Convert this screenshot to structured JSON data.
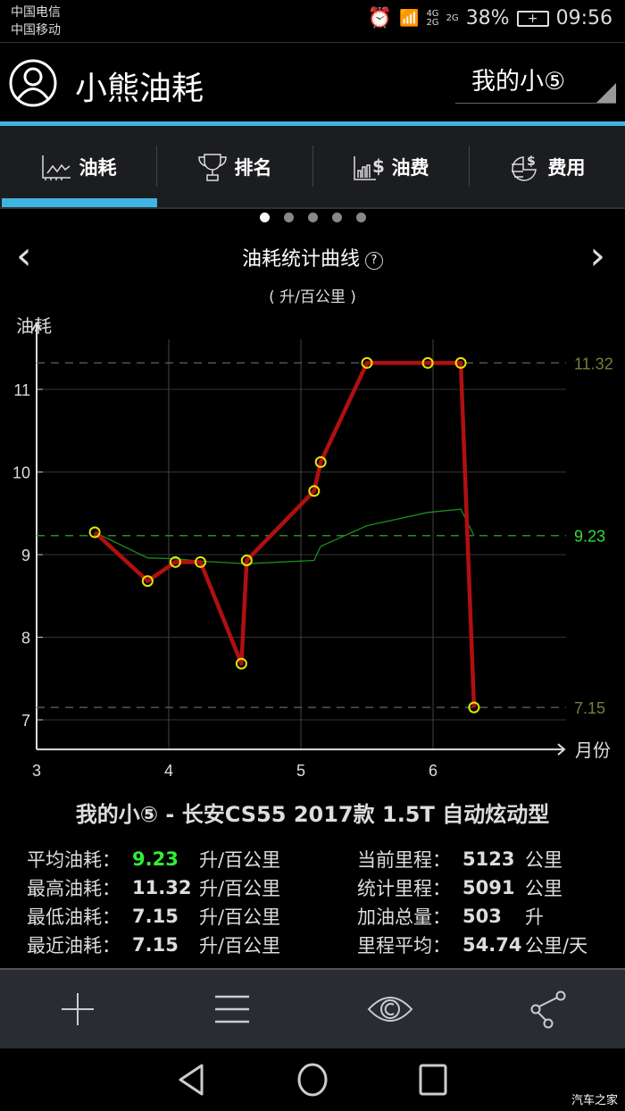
{
  "status_bar": {
    "carriers": [
      "中国电信",
      "中国移动"
    ],
    "net1": "4G",
    "net2": "2G",
    "net3": "2G",
    "battery": "38%",
    "time": "09:56"
  },
  "header": {
    "app_title": "小熊油耗",
    "car_selector": "我的小⑤"
  },
  "tabs": [
    {
      "label": "油耗",
      "icon": "line-chart-icon",
      "active": true
    },
    {
      "label": "排名",
      "icon": "trophy-icon"
    },
    {
      "label": "油费",
      "icon": "bar-dollar-icon"
    },
    {
      "label": "费用",
      "icon": "pie-dollar-icon"
    }
  ],
  "pager": {
    "count": 5,
    "active": 0
  },
  "chart_header": {
    "title": "油耗统计曲线",
    "help": "?",
    "unit": "( 升/百公里 )"
  },
  "chart_data": {
    "type": "line",
    "ylabel": "油耗",
    "xlabel": "月份",
    "xlim": [
      3,
      6.65
    ],
    "ylim": [
      6.75,
      11.5
    ],
    "xticks": [
      3,
      4,
      5,
      6
    ],
    "yticks": [
      7,
      8,
      9,
      10,
      11
    ],
    "grid": true,
    "series": [
      {
        "role": "fuel-consumption",
        "color": "#b01010",
        "marker_color": "#e6e600",
        "x": [
          3.44,
          3.84,
          4.05,
          4.24,
          4.55,
          4.59,
          5.1,
          5.15,
          5.5,
          5.96,
          6.21,
          6.31
        ],
        "y": [
          9.27,
          8.68,
          8.91,
          8.91,
          7.68,
          8.93,
          9.77,
          10.12,
          11.32,
          11.32,
          11.32,
          7.15
        ]
      },
      {
        "role": "running-average",
        "color": "#1f8a1f",
        "x": [
          3.44,
          3.84,
          4.05,
          4.24,
          4.59,
          5.1,
          5.15,
          5.5,
          5.96,
          6.21,
          6.31
        ],
        "y": [
          9.27,
          8.96,
          8.95,
          8.92,
          8.89,
          8.93,
          9.1,
          9.35,
          9.51,
          9.55,
          9.23
        ]
      }
    ],
    "reference_lines": [
      {
        "value": 11.32,
        "label": "11.32",
        "color": "#7c7c3a"
      },
      {
        "value": 9.23,
        "label": "9.23",
        "color": "#33dd33"
      },
      {
        "value": 7.15,
        "label": "7.15",
        "color": "#7c7c3a"
      }
    ]
  },
  "car_name": "我的小⑤ - 长安CS55 2017款 1.5T 自动炫动型",
  "stats_left": [
    {
      "label": "平均油耗：",
      "value": "9.23",
      "unit": "升/百公里"
    },
    {
      "label": "最高油耗：",
      "value": "11.32",
      "unit": "升/百公里"
    },
    {
      "label": "最低油耗：",
      "value": "7.15",
      "unit": "升/百公里"
    },
    {
      "label": "最近油耗：",
      "value": "7.15",
      "unit": "升/百公里"
    }
  ],
  "stats_right": [
    {
      "label": "当前里程：",
      "value": "5123",
      "unit": "公里"
    },
    {
      "label": "统计里程：",
      "value": "5091",
      "unit": "公里"
    },
    {
      "label": "加油总量：",
      "value": "503",
      "unit": "升"
    },
    {
      "label": "里程平均：",
      "value": "54.74",
      "unit": "公里/天"
    }
  ],
  "bottom_bar": [
    "plus-icon",
    "menu-icon",
    "eye-icon",
    "share-icon"
  ],
  "watermark": "汽车之家"
}
